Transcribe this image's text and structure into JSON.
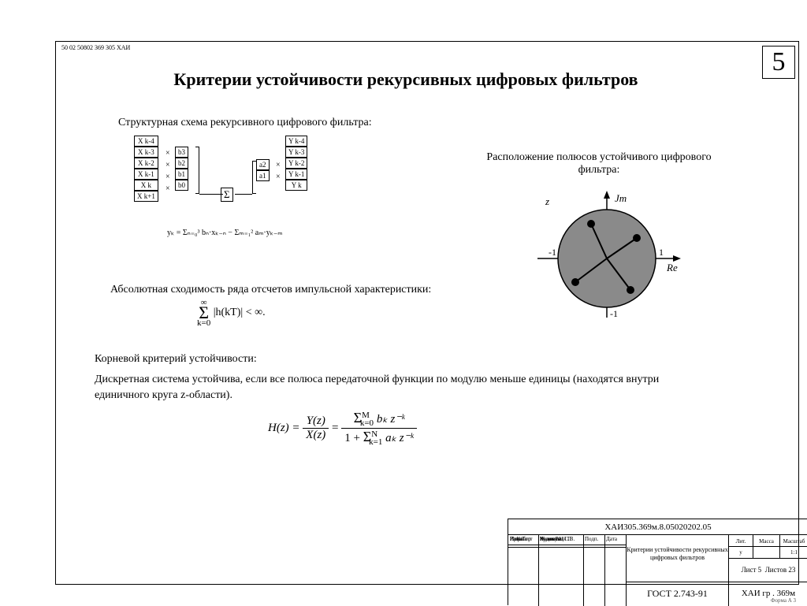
{
  "header_code": "50  02   50802   369 305   ХАИ",
  "page_number": "5",
  "title": "Критерии устойчивости рекурсивных цифровых фильтров",
  "schema_caption": "Структурная схема рекурсивного цифрового фильтра:",
  "x_cells": [
    "X k-4",
    "X k-3",
    "X k-2",
    "X k-1",
    "X k",
    "X k+1"
  ],
  "b_cells": [
    "b3",
    "b2",
    "b1",
    "b0"
  ],
  "a_cells": [
    "a2",
    "a1"
  ],
  "y_cells": [
    "Y k-4",
    "Y k-3",
    "Y k-2",
    "Y k-1",
    "Y k"
  ],
  "sum_symbol": "Σ",
  "yk_formula": "yₖ = Σₙ₌₀³ bₙ·xₖ₋ₙ − Σₘ₌₁² aₘ·yₖ₋ₘ",
  "right_caption": "Расположение полюсов устойчивого цифрового фильтра:",
  "circle": {
    "radius": 62,
    "fill": "#8a8a8a",
    "poles": [
      [
        38,
        26
      ],
      [
        -20,
        44
      ],
      [
        -40,
        -30
      ],
      [
        30,
        -40
      ]
    ],
    "labels": {
      "re": "Re",
      "im": "Jm",
      "m1": "-1",
      "p1": "1",
      "mb": "-1",
      "z": "z"
    }
  },
  "abs_caption": "Абсолютная сходимость ряда отсчетов импульсной характеристики:",
  "abs_formula_sum_top": "∞",
  "abs_formula_sum_bot": "k=0",
  "abs_formula_body": "|h(kT)| < ∞.",
  "root_heading": "Корневой критерий устойчивости:",
  "root_text": "Дискретная система устойчива, если все полюса передаточной функции по модулю меньше единицы (находятся внутри единичного круга z-области).",
  "hz": {
    "lhs": "H(z) = ",
    "n1": "Y(z)",
    "d1": "X(z)",
    "eq": " = ",
    "n2_sum": "Σ",
    "n2_top": "M",
    "n2_bot": "k=0",
    "n2_body": " bₖ z⁻ᵏ",
    "d2_pre": "1 + ",
    "d2_sum": "Σ",
    "d2_top": "N",
    "d2_bot": "k=1",
    "d2_body": " aₖ z⁻ᵏ"
  },
  "title_block": {
    "doc_code": "ХАИ305.369м.8.05020202.05",
    "doc_title1": "Критерии устойчивости рекурсивных",
    "doc_title2": "цифровых фильтров",
    "gost": "ГОСТ  2.743-91",
    "group": "ХАИ гр . 369м",
    "lit": "Лит.",
    "mass": "Масса",
    "scale": "Масштаб",
    "lit_v": "у",
    "scale_v": "1:1",
    "sheet": "Лист  5",
    "sheets": "Листов  23",
    "rows": [
      {
        "c1": "",
        "c2": "",
        "c3": "",
        "c4": ""
      },
      {
        "c1": "Изм.Лист",
        "c2": "№ докум.",
        "c3": "Подп.",
        "c4": "Дата"
      },
      {
        "c1": "Разраб.",
        "c2": "Кулик Р.Н.",
        "c3": "",
        "c4": ""
      },
      {
        "c1": "Пров.",
        "c2": "Жуковский П",
        "c3": "",
        "c4": ""
      },
      {
        "c1": "",
        "c2": "",
        "c3": "",
        "c4": ""
      },
      {
        "c1": "Н. Контр",
        "c2": "Коломиец С.В.",
        "c3": "",
        "c4": ""
      }
    ]
  },
  "form_label": "Форма А 3"
}
